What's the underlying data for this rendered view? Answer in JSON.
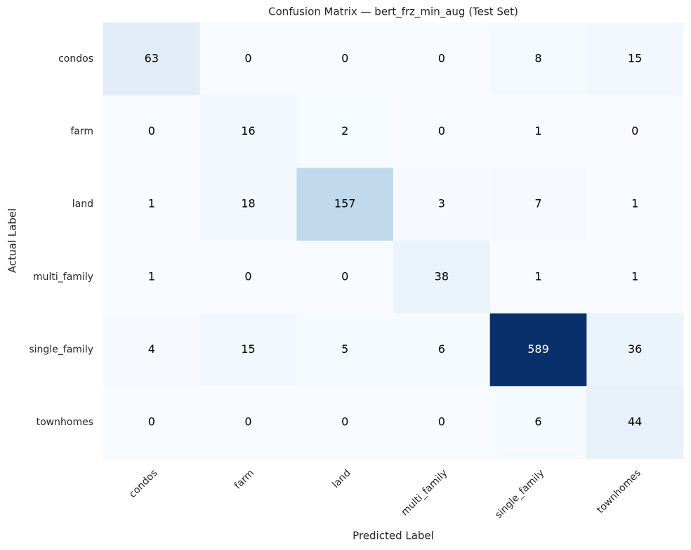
{
  "chart_data": {
    "type": "heatmap",
    "title": "Confusion Matrix — bert_frz_min_aug (Test Set)",
    "x_label": "Predicted Label",
    "y_label": "Actual Label",
    "x_categories": [
      "condos",
      "farm",
      "land",
      "multi_family",
      "single_family",
      "townhomes"
    ],
    "y_categories": [
      "condos",
      "farm",
      "land",
      "multi_family",
      "single_family",
      "townhomes"
    ],
    "values": [
      [
        63,
        0,
        0,
        0,
        8,
        15
      ],
      [
        0,
        16,
        2,
        0,
        1,
        0
      ],
      [
        1,
        18,
        157,
        3,
        7,
        1
      ],
      [
        1,
        0,
        0,
        38,
        1,
        1
      ],
      [
        4,
        15,
        5,
        6,
        589,
        36
      ],
      [
        0,
        0,
        0,
        0,
        6,
        44
      ]
    ],
    "cmap": "Blues"
  }
}
